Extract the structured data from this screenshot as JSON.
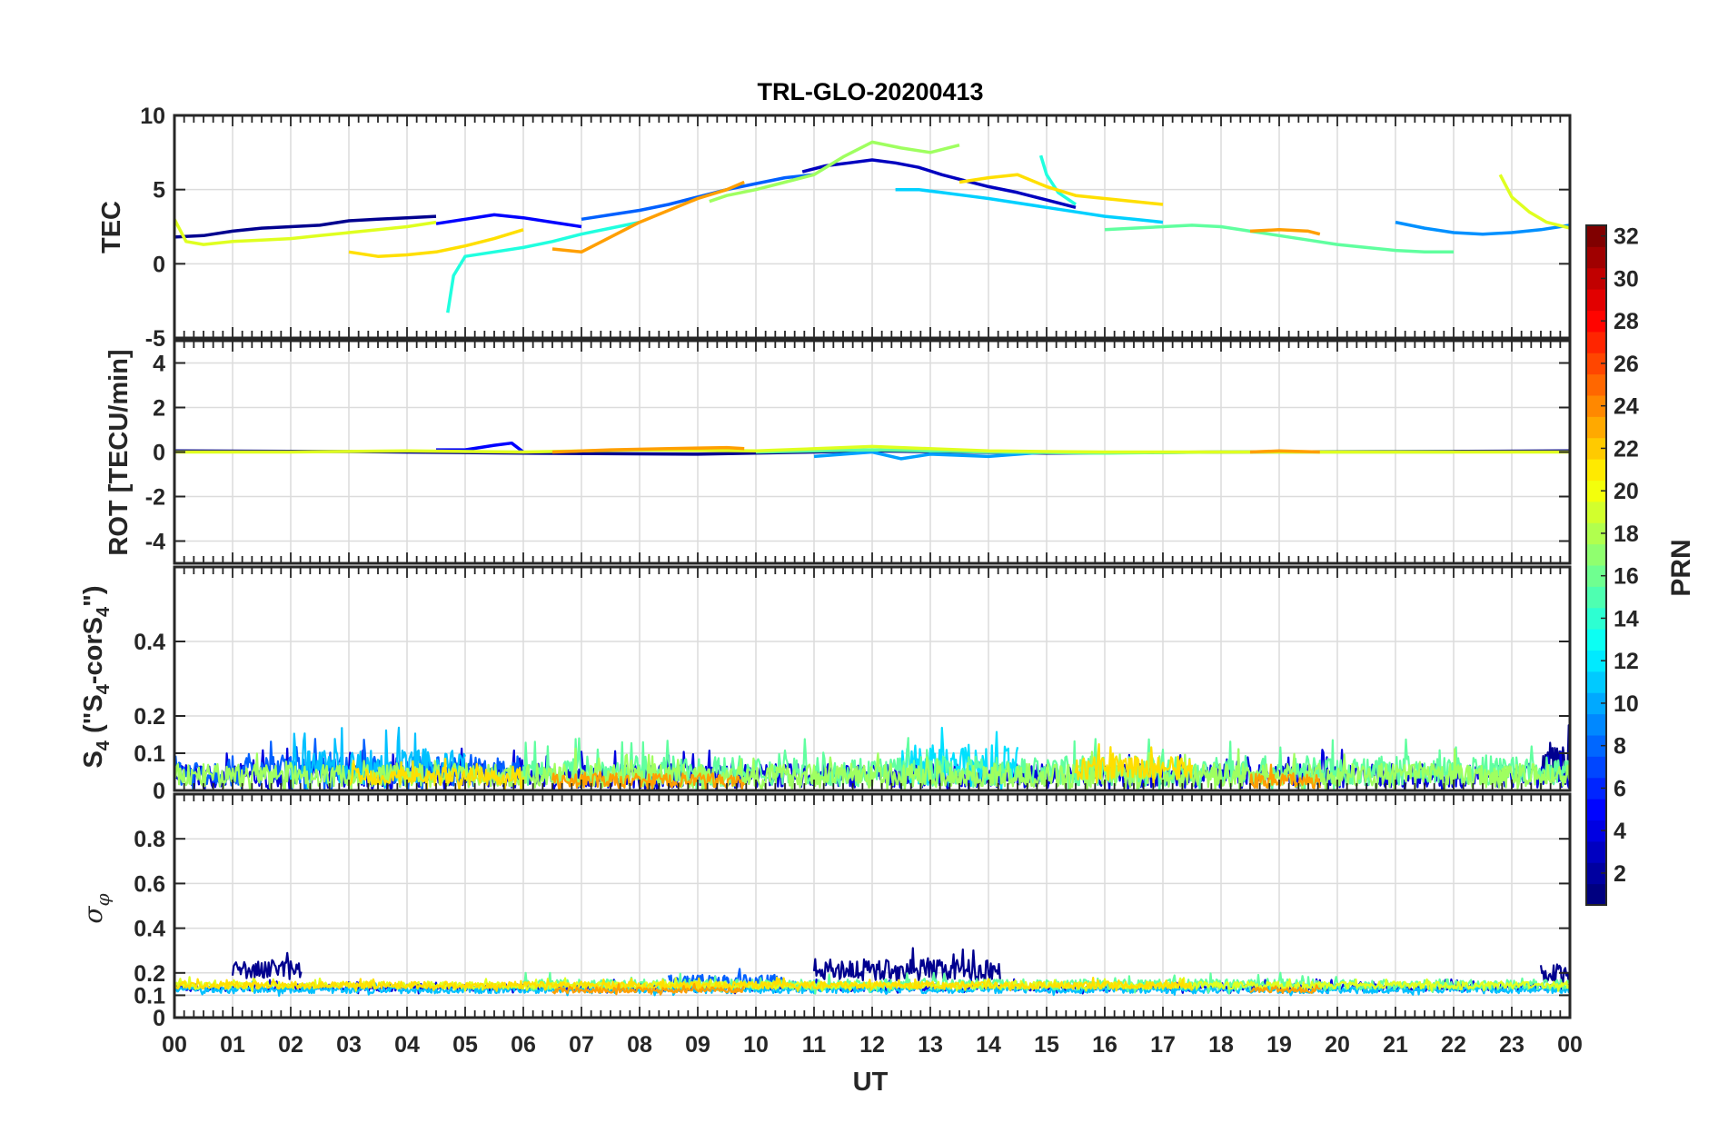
{
  "chart_data": {
    "type": "line",
    "title": "TRL-GLO-20200413",
    "xlabel": "UT",
    "x_ticks": [
      "00",
      "01",
      "02",
      "03",
      "04",
      "05",
      "06",
      "07",
      "08",
      "09",
      "10",
      "11",
      "12",
      "13",
      "14",
      "15",
      "16",
      "17",
      "18",
      "19",
      "20",
      "21",
      "22",
      "23",
      "00"
    ],
    "xlim": [
      0,
      24
    ],
    "panels": [
      {
        "id": "tec",
        "ylabel": "TEC",
        "ylim": [
          -5,
          10
        ],
        "y_ticks": [
          -5,
          0,
          5,
          10
        ],
        "y_tick_labels": [
          "-5",
          "0",
          "5",
          "10"
        ],
        "series": [
          {
            "name": "PRN 2",
            "prn": 2,
            "color": "#00008f",
            "x": [
              0.0,
              0.5,
              1.0,
              1.5,
              2.0,
              2.5,
              3.0,
              3.5,
              4.0,
              4.5
            ],
            "y": [
              1.8,
              1.9,
              2.2,
              2.4,
              2.5,
              2.6,
              2.9,
              3.0,
              3.1,
              3.2
            ]
          },
          {
            "name": "PRN 3",
            "prn": 3,
            "color": "#0000bf",
            "x": [
              10.8,
              11.2,
              11.6,
              12.0,
              12.4,
              12.8,
              13.2,
              13.6,
              14.0,
              14.5,
              15.0,
              15.5
            ],
            "y": [
              6.2,
              6.6,
              6.8,
              7.0,
              6.8,
              6.5,
              6.0,
              5.6,
              5.2,
              4.8,
              4.3,
              3.8
            ]
          },
          {
            "name": "PRN 5",
            "prn": 5,
            "color": "#0000ff",
            "x": [
              4.5,
              5.0,
              5.5,
              6.0,
              6.5,
              7.0
            ],
            "y": [
              2.7,
              3.0,
              3.3,
              3.1,
              2.8,
              2.5
            ]
          },
          {
            "name": "PRN 8",
            "prn": 8,
            "color": "#0060ff",
            "x": [
              7.0,
              7.5,
              8.0,
              8.5,
              9.0,
              9.5,
              10.0,
              10.5,
              11.0
            ],
            "y": [
              3.0,
              3.3,
              3.6,
              4.0,
              4.5,
              5.0,
              5.4,
              5.8,
              6.0
            ]
          },
          {
            "name": "PRN 10",
            "prn": 10,
            "color": "#0090ff",
            "x": [
              21.0,
              21.5,
              22.0,
              22.5,
              23.0,
              23.5,
              24.0
            ],
            "y": [
              2.8,
              2.4,
              2.1,
              2.0,
              2.1,
              2.3,
              2.6
            ]
          },
          {
            "name": "PRN 13",
            "prn": 13,
            "color": "#00d0ff",
            "x": [
              12.4,
              12.8,
              13.2,
              13.6,
              14.0,
              14.5,
              15.0,
              15.5,
              16.0,
              16.5,
              17.0
            ],
            "y": [
              5.0,
              5.0,
              4.8,
              4.6,
              4.4,
              4.1,
              3.8,
              3.5,
              3.2,
              3.0,
              2.8
            ]
          },
          {
            "name": "PRN 14",
            "prn": 14,
            "color": "#20ffdf",
            "x": [
              4.7,
              4.8,
              5.0,
              5.5,
              6.0,
              6.5,
              7.0,
              7.5,
              8.0
            ],
            "y": [
              -3.3,
              -0.8,
              0.5,
              0.8,
              1.1,
              1.5,
              2.0,
              2.4,
              2.8
            ]
          },
          {
            "name": "PRN 14b",
            "prn": 14,
            "color": "#20ffdf",
            "x": [
              14.9,
              15.0,
              15.2,
              15.5
            ],
            "y": [
              7.3,
              6.0,
              4.8,
              4.0
            ]
          },
          {
            "name": "PRN 16",
            "prn": 16,
            "color": "#60ff9f",
            "x": [
              16.0,
              16.5,
              17.0,
              17.5,
              18.0,
              18.5,
              19.0,
              19.5,
              20.0,
              20.5,
              21.0,
              21.5,
              22.0
            ],
            "y": [
              2.3,
              2.4,
              2.5,
              2.6,
              2.5,
              2.2,
              1.9,
              1.6,
              1.3,
              1.1,
              0.9,
              0.8,
              0.8
            ]
          },
          {
            "name": "PRN 18",
            "prn": 18,
            "color": "#9fff60",
            "x": [
              9.2,
              9.5,
              10.0,
              10.5,
              11.0,
              11.5,
              12.0,
              12.5,
              13.0,
              13.5
            ],
            "y": [
              4.2,
              4.6,
              5.0,
              5.5,
              6.0,
              7.2,
              8.2,
              7.8,
              7.5,
              8.0
            ]
          },
          {
            "name": "PRN 19",
            "prn": 19,
            "color": "#dfff20",
            "x": [
              0.0,
              0.2,
              0.5,
              1.0,
              1.5,
              2.0,
              2.5,
              3.0,
              3.5,
              4.0,
              4.5
            ],
            "y": [
              3.0,
              1.5,
              1.3,
              1.5,
              1.6,
              1.7,
              1.9,
              2.1,
              2.3,
              2.5,
              2.8
            ]
          },
          {
            "name": "PRN 19b",
            "prn": 19,
            "color": "#dfff20",
            "x": [
              22.8,
              23.0,
              23.3,
              23.6,
              24.0
            ],
            "y": [
              6.0,
              4.5,
              3.5,
              2.8,
              2.4
            ]
          },
          {
            "name": "PRN 21",
            "prn": 21,
            "color": "#ffdf00",
            "x": [
              3.0,
              3.5,
              4.0,
              4.5,
              5.0,
              5.5,
              6.0
            ],
            "y": [
              0.8,
              0.5,
              0.6,
              0.8,
              1.2,
              1.7,
              2.3
            ]
          },
          {
            "name": "PRN 21b",
            "prn": 21,
            "color": "#ffdf00",
            "x": [
              13.5,
              14.0,
              14.5,
              15.0,
              15.5,
              16.0,
              16.5,
              17.0
            ],
            "y": [
              5.5,
              5.8,
              6.0,
              5.2,
              4.6,
              4.4,
              4.2,
              4.0
            ]
          },
          {
            "name": "PRN 23",
            "prn": 23,
            "color": "#ff9f00",
            "x": [
              6.5,
              7.0,
              7.5,
              8.0,
              8.5,
              9.0,
              9.5,
              9.8
            ],
            "y": [
              1.0,
              0.8,
              1.8,
              2.8,
              3.6,
              4.4,
              5.0,
              5.5
            ]
          },
          {
            "name": "PRN 23b",
            "prn": 23,
            "color": "#ff9f00",
            "x": [
              18.5,
              19.0,
              19.5,
              19.7
            ],
            "y": [
              2.2,
              2.3,
              2.2,
              2.0
            ]
          }
        ]
      },
      {
        "id": "rot",
        "ylabel": "ROT [TECU/min]",
        "ylim": [
          -5,
          5
        ],
        "y_ticks": [
          -4,
          -2,
          0,
          2,
          4
        ],
        "y_tick_labels": [
          "-4",
          "-2",
          "0",
          "2",
          "4"
        ],
        "series": [
          {
            "name": "PRN 2",
            "prn": 2,
            "color": "#00008f",
            "x": [
              0,
              3,
              6,
              9,
              12,
              15,
              18,
              21,
              24
            ],
            "y": [
              0.05,
              0.02,
              -0.05,
              -0.1,
              0.05,
              -0.05,
              0.0,
              0.02,
              0.05
            ]
          },
          {
            "name": "PRN 5",
            "prn": 5,
            "color": "#0000ff",
            "x": [
              4.5,
              5.0,
              5.5,
              5.8,
              6.0
            ],
            "y": [
              0.1,
              0.1,
              0.3,
              0.4,
              0.0
            ]
          },
          {
            "name": "PRN 11",
            "prn": 11,
            "color": "#00a0ff",
            "x": [
              11.0,
              12.0,
              12.5,
              13.0,
              14.0,
              15.0
            ],
            "y": [
              -0.2,
              0.0,
              -0.3,
              -0.1,
              -0.2,
              0.0
            ]
          },
          {
            "name": "PRN 16",
            "prn": 16,
            "color": "#60ff9f",
            "x": [
              10,
              12,
              14,
              16,
              18,
              20,
              22
            ],
            "y": [
              0.0,
              0.1,
              0.0,
              -0.05,
              0.0,
              0.0,
              0.0
            ]
          },
          {
            "name": "PRN 19",
            "prn": 19,
            "color": "#dfff20",
            "x": [
              0,
              2,
              4,
              6,
              8,
              10,
              12,
              14,
              16,
              20,
              24
            ],
            "y": [
              0.0,
              0.0,
              0.05,
              0.0,
              0.1,
              0.05,
              0.25,
              0.05,
              0.0,
              0.0,
              0.0
            ]
          },
          {
            "name": "PRN 23",
            "prn": 23,
            "color": "#ff9f00",
            "x": [
              6.5,
              7.5,
              8.5,
              9.5,
              9.8
            ],
            "y": [
              0.0,
              0.1,
              0.15,
              0.2,
              0.15
            ]
          },
          {
            "name": "PRN 23b",
            "prn": 23,
            "color": "#ff9f00",
            "x": [
              18.5,
              19.0,
              19.7
            ],
            "y": [
              0.0,
              0.05,
              0.0
            ]
          }
        ]
      },
      {
        "id": "s4",
        "ylabel": "S4 (\"S4-corS4\")",
        "ylim": [
          0,
          0.6
        ],
        "y_ticks": [
          0,
          0.1,
          0.2,
          0.4
        ],
        "y_tick_labels": [
          "0",
          "0.1",
          "0.2",
          "0.4"
        ],
        "noise_bands": [
          {
            "prn": 2,
            "color": "#00008f",
            "x0": 23.5,
            "x1": 24.0,
            "base": 0.05,
            "amp": 0.14
          },
          {
            "prn": 4,
            "color": "#0000df",
            "x0": 0.0,
            "x1": 24.0,
            "base": 0.03,
            "amp": 0.08
          },
          {
            "prn": 8,
            "color": "#0060ff",
            "x0": 0.0,
            "x1": 6.0,
            "base": 0.04,
            "amp": 0.1
          },
          {
            "prn": 12,
            "color": "#00c0ff",
            "x0": 2.0,
            "x1": 5.0,
            "base": 0.05,
            "amp": 0.12
          },
          {
            "prn": 13,
            "color": "#00e0ff",
            "x0": 12.5,
            "x1": 14.5,
            "base": 0.05,
            "amp": 0.14
          },
          {
            "prn": 16,
            "color": "#60ff9f",
            "x0": 6.0,
            "x1": 24.0,
            "base": 0.04,
            "amp": 0.1
          },
          {
            "prn": 18,
            "color": "#9fff60",
            "x0": 0.0,
            "x1": 24.0,
            "base": 0.03,
            "amp": 0.08
          },
          {
            "prn": 21,
            "color": "#ffdf00",
            "x0": 15.5,
            "x1": 17.5,
            "base": 0.05,
            "amp": 0.08
          },
          {
            "prn": 21,
            "color": "#ffdf00",
            "x0": 3.0,
            "x1": 6.0,
            "base": 0.03,
            "amp": 0.06
          },
          {
            "prn": 23,
            "color": "#ff9f00",
            "x0": 6.5,
            "x1": 9.8,
            "base": 0.02,
            "amp": 0.05
          },
          {
            "prn": 23,
            "color": "#ff9f00",
            "x0": 18.5,
            "x1": 19.7,
            "base": 0.02,
            "amp": 0.05
          }
        ]
      },
      {
        "id": "sigma",
        "ylabel": "σφ",
        "ylim": [
          0,
          1.0
        ],
        "y_ticks": [
          0,
          0.1,
          0.2,
          0.4,
          0.6,
          0.8
        ],
        "y_tick_labels": [
          "0",
          "0.1",
          "0.2",
          "0.4",
          "0.6",
          "0.8"
        ],
        "noise_bands": [
          {
            "prn": 2,
            "color": "#00008f",
            "x0": 1.0,
            "x1": 2.2,
            "base": 0.2,
            "amp": 0.1
          },
          {
            "prn": 2,
            "color": "#00008f",
            "x0": 11.0,
            "x1": 14.2,
            "base": 0.2,
            "amp": 0.12
          },
          {
            "prn": 2,
            "color": "#00008f",
            "x0": 23.5,
            "x1": 24.0,
            "base": 0.18,
            "amp": 0.12
          },
          {
            "prn": 4,
            "color": "#0000df",
            "x0": 0.0,
            "x1": 24.0,
            "base": 0.13,
            "amp": 0.04
          },
          {
            "prn": 8,
            "color": "#0060ff",
            "x0": 8.5,
            "x1": 10.5,
            "base": 0.15,
            "amp": 0.08
          },
          {
            "prn": 12,
            "color": "#00c0ff",
            "x0": 0.0,
            "x1": 24.0,
            "base": 0.12,
            "amp": 0.04
          },
          {
            "prn": 16,
            "color": "#60ff9f",
            "x0": 6.0,
            "x1": 24.0,
            "base": 0.14,
            "amp": 0.06
          },
          {
            "prn": 19,
            "color": "#dfff20",
            "x0": 0.0,
            "x1": 24.0,
            "base": 0.14,
            "amp": 0.04
          },
          {
            "prn": 21,
            "color": "#ffdf00",
            "x0": 0.0,
            "x1": 17.5,
            "base": 0.14,
            "amp": 0.04
          },
          {
            "prn": 23,
            "color": "#ff9f00",
            "x0": 6.5,
            "x1": 9.8,
            "base": 0.12,
            "amp": 0.03
          },
          {
            "prn": 23,
            "color": "#ff9f00",
            "x0": 18.5,
            "x1": 19.7,
            "base": 0.12,
            "amp": 0.03
          }
        ]
      }
    ],
    "colorbar": {
      "label": "PRN",
      "min": 1,
      "max": 32,
      "colormap": "jet",
      "tick_labels": [
        "2",
        "4",
        "6",
        "8",
        "10",
        "12",
        "14",
        "16",
        "18",
        "20",
        "22",
        "24",
        "26",
        "28",
        "30",
        "32"
      ]
    }
  }
}
